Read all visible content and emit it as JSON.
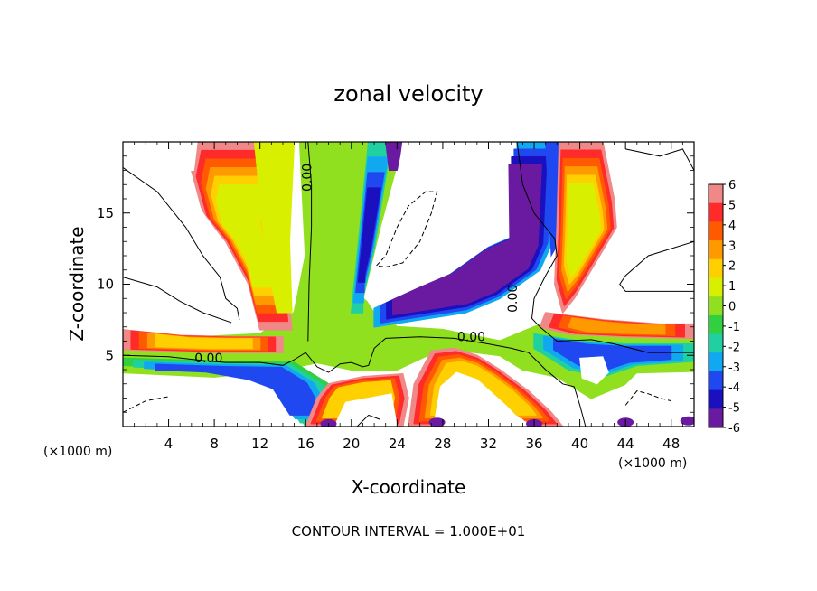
{
  "chart_data": {
    "type": "heatmap",
    "title": "zonal velocity",
    "xlabel": "X-coordinate",
    "ylabel": "Z-coordinate",
    "x_unit_note_left": "(×1000 m)",
    "x_unit_note_right": "(×1000 m)",
    "footer": "CONTOUR INTERVAL = 1.000E+01",
    "xlim": [
      0,
      50
    ],
    "ylim": [
      0,
      20
    ],
    "x_ticks": [
      4,
      8,
      12,
      16,
      20,
      24,
      28,
      32,
      36,
      40,
      44,
      48
    ],
    "y_ticks": [
      5,
      10,
      15
    ],
    "colorbar": {
      "ticks": [
        6,
        5,
        4,
        3,
        2,
        1,
        0,
        -1,
        -2,
        -3,
        -4,
        -5,
        -6
      ],
      "colors": [
        "#f08888",
        "#ff2a2a",
        "#ff5a00",
        "#ff9900",
        "#ffd000",
        "#d8f000",
        "#90e020",
        "#30d040",
        "#20d0a0",
        "#10a8f0",
        "#1f48f0",
        "#1a10c0",
        "#6a1aa0"
      ]
    },
    "contour_labels": [
      {
        "text": "0.00",
        "x": 16.5,
        "z": 17.5
      },
      {
        "text": "0.00",
        "x": 7.5,
        "z": 4.5
      },
      {
        "text": "0.00",
        "x": 30.5,
        "z": 6.0
      },
      {
        "text": "0.00",
        "x": 34.5,
        "z": 9.0
      }
    ]
  }
}
